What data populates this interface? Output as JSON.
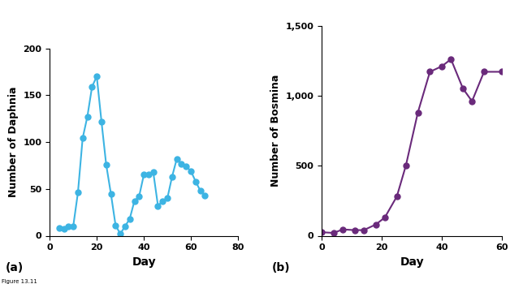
{
  "caption": "Figure 13.11",
  "chart_data": [
    {
      "type": "line",
      "title": "(a)",
      "x_label": "Day",
      "y_label": "Number of Daphnia",
      "x": [
        4,
        6,
        8,
        10,
        12,
        14,
        16,
        18,
        20,
        22,
        24,
        26,
        28,
        30,
        32,
        34,
        36,
        38,
        40,
        42,
        44,
        46,
        48,
        50,
        52,
        54,
        56,
        58,
        60,
        62,
        64,
        66
      ],
      "values": [
        8,
        7,
        10,
        10,
        46,
        104,
        127,
        159,
        170,
        122,
        76,
        45,
        11,
        2,
        10,
        18,
        37,
        42,
        65,
        65,
        68,
        32,
        37,
        40,
        63,
        82,
        77,
        74,
        69,
        58,
        48,
        43
      ],
      "color": "#3db4e3",
      "marker": "circle",
      "line_style": "solid",
      "xlim": [
        0,
        80
      ],
      "xticks": [
        0,
        20,
        40,
        60,
        80
      ],
      "ylim": [
        0,
        200
      ],
      "yticks": [
        0,
        50,
        100,
        150,
        200
      ],
      "grid": false
    },
    {
      "type": "line",
      "title": "(b)",
      "x_label": "Day",
      "y_label": "Number of Bosmina",
      "x": [
        0,
        4,
        7,
        11,
        14,
        18,
        21,
        25,
        28,
        32,
        36,
        40,
        43,
        47,
        50,
        54,
        60
      ],
      "values": [
        25,
        20,
        45,
        40,
        40,
        80,
        130,
        280,
        500,
        880,
        1170,
        1210,
        1260,
        1050,
        960,
        1170,
        1170
      ],
      "color": "#6a2a7b",
      "marker": "circle",
      "line_style": "solid",
      "xlim": [
        0,
        60
      ],
      "xticks": [
        0,
        20,
        40,
        60
      ],
      "ylim": [
        0,
        1500
      ],
      "yticks": [
        0,
        500,
        {
          "value": 1000,
          "label": "1,000"
        },
        {
          "value": 1500,
          "label": "1,500"
        }
      ],
      "grid": false
    }
  ]
}
